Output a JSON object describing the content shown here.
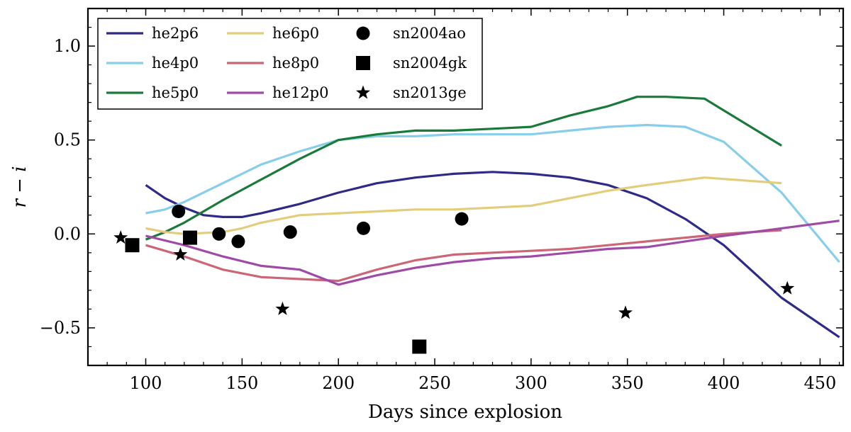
{
  "chart_data": {
    "type": "line",
    "title": "",
    "xlabel": "Days since explosion",
    "ylabel": "r − i",
    "xlim": [
      70,
      462
    ],
    "ylim": [
      -0.7,
      1.2
    ],
    "xticks": [
      100,
      150,
      200,
      250,
      300,
      350,
      400,
      450
    ],
    "yticks": [
      -0.5,
      0.0,
      0.5,
      1.0
    ],
    "ytick_labels": [
      "−0.5",
      "0.0",
      "0.5",
      "1.0"
    ],
    "grid": false,
    "legend_position": "top-left",
    "series": [
      {
        "name": "he2p6",
        "color": "#2e2a87",
        "x": [
          100,
          110,
          120,
          130,
          140,
          150,
          160,
          180,
          200,
          220,
          240,
          260,
          280,
          300,
          320,
          340,
          360,
          380,
          400,
          430,
          460
        ],
        "y": [
          0.26,
          0.19,
          0.14,
          0.1,
          0.09,
          0.09,
          0.11,
          0.16,
          0.22,
          0.27,
          0.3,
          0.32,
          0.33,
          0.32,
          0.3,
          0.26,
          0.19,
          0.08,
          -0.06,
          -0.34,
          -0.55
        ]
      },
      {
        "name": "he4p0",
        "color": "#87ceeb",
        "x": [
          100,
          110,
          120,
          140,
          160,
          180,
          200,
          220,
          240,
          260,
          280,
          300,
          320,
          340,
          360,
          380,
          400,
          430,
          460
        ],
        "y": [
          0.11,
          0.13,
          0.17,
          0.27,
          0.37,
          0.44,
          0.5,
          0.52,
          0.52,
          0.53,
          0.53,
          0.53,
          0.55,
          0.57,
          0.58,
          0.57,
          0.49,
          0.22,
          -0.15
        ]
      },
      {
        "name": "he5p0",
        "color": "#1a7a3a",
        "x": [
          100,
          110,
          120,
          140,
          160,
          180,
          200,
          220,
          240,
          260,
          280,
          300,
          320,
          340,
          355,
          370,
          390,
          430
        ],
        "y": [
          -0.03,
          0.01,
          0.06,
          0.18,
          0.29,
          0.4,
          0.5,
          0.53,
          0.55,
          0.55,
          0.56,
          0.57,
          0.63,
          0.68,
          0.73,
          0.73,
          0.72,
          0.47
        ]
      },
      {
        "name": "he6p0",
        "color": "#e3cd7a",
        "x": [
          100,
          110,
          120,
          140,
          150,
          160,
          180,
          200,
          220,
          240,
          260,
          280,
          300,
          320,
          340,
          360,
          390,
          430
        ],
        "y": [
          0.03,
          0.01,
          0.0,
          0.01,
          0.03,
          0.06,
          0.1,
          0.11,
          0.12,
          0.13,
          0.13,
          0.14,
          0.15,
          0.19,
          0.23,
          0.26,
          0.3,
          0.27
        ]
      },
      {
        "name": "he8p0",
        "color": "#cc6677",
        "x": [
          100,
          120,
          140,
          160,
          180,
          200,
          220,
          240,
          260,
          280,
          300,
          320,
          340,
          360,
          380,
          400,
          430
        ],
        "y": [
          -0.06,
          -0.12,
          -0.19,
          -0.23,
          -0.24,
          -0.25,
          -0.19,
          -0.14,
          -0.11,
          -0.1,
          -0.09,
          -0.08,
          -0.06,
          -0.04,
          -0.02,
          0.0,
          0.02
        ]
      },
      {
        "name": "he12p0",
        "color": "#a04aa8",
        "x": [
          100,
          120,
          140,
          160,
          180,
          200,
          220,
          240,
          260,
          280,
          300,
          320,
          340,
          360,
          380,
          400,
          430,
          460
        ],
        "y": [
          -0.01,
          -0.06,
          -0.12,
          -0.17,
          -0.19,
          -0.27,
          -0.22,
          -0.18,
          -0.15,
          -0.13,
          -0.12,
          -0.1,
          -0.08,
          -0.07,
          -0.04,
          -0.01,
          0.03,
          0.07
        ]
      }
    ],
    "observations": [
      {
        "name": "sn2004ao",
        "marker": "circle",
        "x": [
          117,
          138,
          148,
          175,
          213,
          264
        ],
        "y": [
          0.12,
          0.0,
          -0.04,
          0.01,
          0.03,
          0.08
        ]
      },
      {
        "name": "sn2004gk",
        "marker": "square",
        "x": [
          93,
          123,
          242
        ],
        "y": [
          -0.06,
          -0.02,
          -0.6
        ]
      },
      {
        "name": "sn2013ge",
        "marker": "star",
        "x": [
          87,
          118,
          171,
          349,
          433
        ],
        "y": [
          -0.02,
          -0.11,
          -0.4,
          -0.42,
          -0.29
        ]
      }
    ]
  }
}
